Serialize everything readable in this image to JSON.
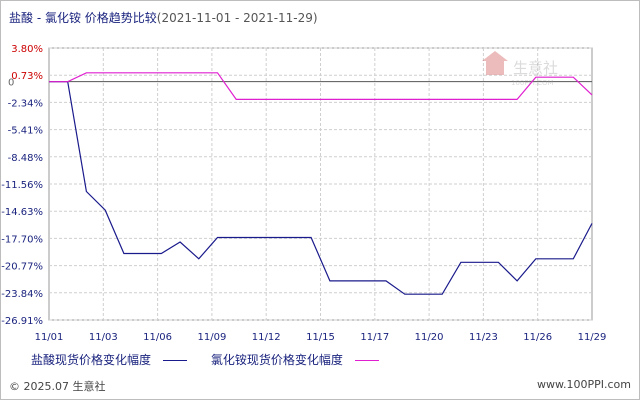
{
  "header": {
    "title": "盐酸 - 氯化铵 价格趋势比较",
    "date_range": "(2021-11-01 - 2021-11-29)"
  },
  "footer": {
    "copyright": "© 2025.07 生意社",
    "url": "www.100PPI.com"
  },
  "watermark": {
    "text": "生意社",
    "subtext": "100PPI.COM"
  },
  "colors": {
    "series1": "#1a1a8c",
    "series2": "#e020d0",
    "up_tick": "#cc0000",
    "down_tick": "#1a237e",
    "grid": "#cfcfcf"
  },
  "chart_data": {
    "type": "line",
    "title": "盐酸 - 氯化铵 价格趋势比较",
    "x_tick_labels": [
      "11/01",
      "11/03",
      "11/06",
      "11/09",
      "11/12",
      "11/15",
      "11/17",
      "11/20",
      "11/23",
      "11/26",
      "11/29"
    ],
    "y_ticks": [
      3.8,
      0.73,
      -2.34,
      -5.41,
      -8.48,
      -11.56,
      -14.63,
      -17.7,
      -20.77,
      -23.84,
      -26.91
    ],
    "y_tick_labels": [
      "3.80%",
      "0.73%",
      "-2.34%",
      "-5.41%",
      "-8.48%",
      "-11.56%",
      "-14.63%",
      "-17.70%",
      "-20.77%",
      "-23.84%",
      "-26.91%"
    ],
    "zero_label": "0",
    "ylim": [
      -26.91,
      3.8
    ],
    "grid": true,
    "legend_position": "bottom-left",
    "series": [
      {
        "name": "盐酸现货价格变化幅度",
        "color": "#1a1a8c",
        "values": [
          0,
          0,
          -12.4,
          -14.5,
          -19.4,
          -19.4,
          -19.4,
          -18.1,
          -20.0,
          -17.6,
          -17.6,
          -17.6,
          -17.6,
          -17.6,
          -17.6,
          -22.5,
          -22.5,
          -22.5,
          -22.5,
          -24.0,
          -24.0,
          -24.0,
          -20.4,
          -20.4,
          -20.4,
          -22.5,
          -20.0,
          -20.0,
          -20.0,
          -16.0
        ]
      },
      {
        "name": "氯化铵现货价格变化幅度",
        "color": "#e020d0",
        "values": [
          0,
          0,
          1.0,
          1.0,
          1.0,
          1.0,
          1.0,
          1.0,
          1.0,
          1.0,
          -2.0,
          -2.0,
          -2.0,
          -2.0,
          -2.0,
          -2.0,
          -2.0,
          -2.0,
          -2.0,
          -2.0,
          -2.0,
          -2.0,
          -2.0,
          -2.0,
          -2.0,
          -2.0,
          0.5,
          0.5,
          0.5,
          -1.5
        ]
      }
    ]
  }
}
